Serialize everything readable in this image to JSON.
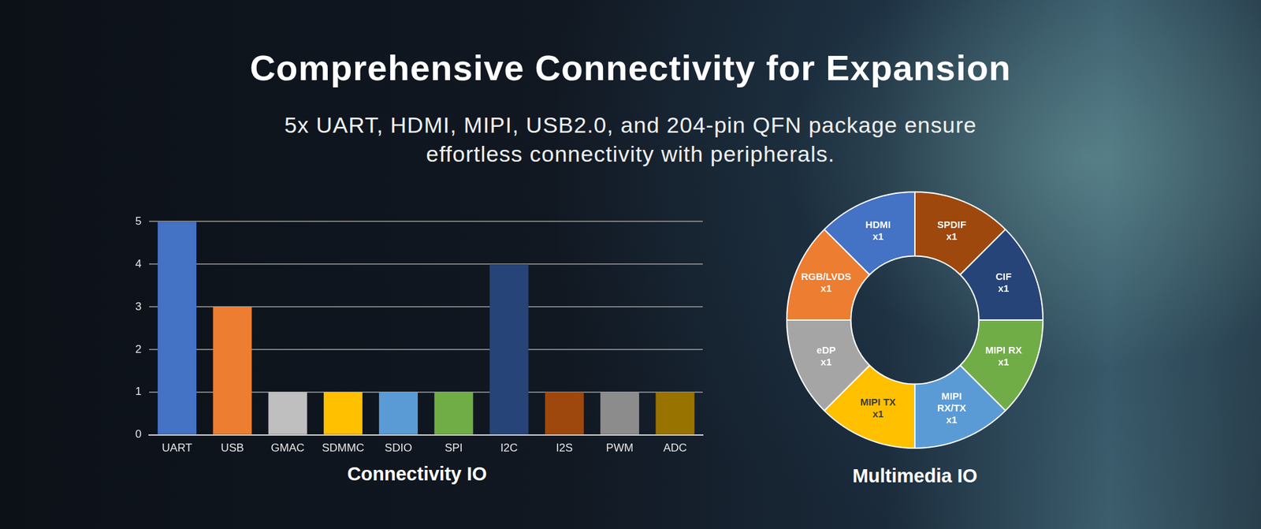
{
  "title": "Comprehensive Connectivity for Expansion",
  "subtitle": "5x UART, HDMI, MIPI, USB2.0, and 204-pin QFN package ensure effortless connectivity with peripherals.",
  "chart_data": [
    {
      "type": "bar",
      "title": "Connectivity IO",
      "categories": [
        "UART",
        "USB",
        "GMAC",
        "SDMMC",
        "SDIO",
        "SPI",
        "I2C",
        "I2S",
        "PWM",
        "ADC"
      ],
      "values": [
        5,
        3,
        1,
        1,
        1,
        1,
        4,
        1,
        1,
        1
      ],
      "colors": [
        "#4472c4",
        "#ed7d31",
        "#bfbfbf",
        "#ffc000",
        "#5b9bd5",
        "#70ad47",
        "#264478",
        "#9e480e",
        "#8c8c8c",
        "#997300"
      ],
      "ylim": [
        0,
        5
      ],
      "yticks": [
        0,
        1,
        2,
        3,
        4,
        5
      ],
      "grid": true
    },
    {
      "type": "doughnut",
      "title": "Multimedia IO",
      "categories": [
        "SPDIF",
        "CIF",
        "MIPI RX",
        "MIPI RX/TX",
        "MIPI TX",
        "eDP",
        "RGB/LVDS",
        "HDMI"
      ],
      "values": [
        1,
        1,
        1,
        1,
        1,
        1,
        1,
        1
      ],
      "value_labels": [
        "x1",
        "x1",
        "x1",
        "x1",
        "x1",
        "x1",
        "x1",
        "x1"
      ],
      "colors": [
        "#9e480e",
        "#264478",
        "#70ad47",
        "#5b9bd5",
        "#ffc000",
        "#a5a5a5",
        "#ed7d31",
        "#4472c4"
      ],
      "data_labels": true
    }
  ]
}
